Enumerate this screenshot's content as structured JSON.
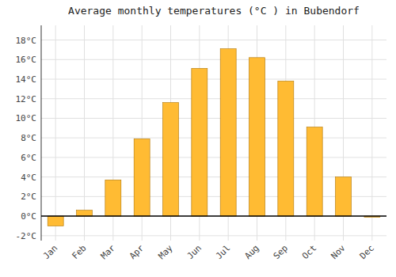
{
  "chart_data": {
    "type": "bar",
    "title": "Average monthly temperatures (°C ) in Bubendorf",
    "categories": [
      "Jan",
      "Feb",
      "Mar",
      "Apr",
      "May",
      "Jun",
      "Jul",
      "Aug",
      "Sep",
      "Oct",
      "Nov",
      "Dec"
    ],
    "values": [
      -1.0,
      0.6,
      3.7,
      7.9,
      11.6,
      15.1,
      17.1,
      16.2,
      13.8,
      9.1,
      4.0,
      -0.1
    ],
    "color": "#FFBB33",
    "ylim": [
      -2.5,
      19.5
    ],
    "yticks": [
      {
        "value": -2,
        "label": "-2°C"
      },
      {
        "value": 0,
        "label": "0°C"
      },
      {
        "value": 2,
        "label": "2°C"
      },
      {
        "value": 4,
        "label": "4°C"
      },
      {
        "value": 6,
        "label": "6°C"
      },
      {
        "value": 8,
        "label": "8°C"
      },
      {
        "value": 10,
        "label": "10°C"
      },
      {
        "value": 12,
        "label": "12°C"
      },
      {
        "value": 14,
        "label": "14°C"
      },
      {
        "value": 16,
        "label": "16°C"
      },
      {
        "value": 18,
        "label": "18°C"
      }
    ],
    "grid": true
  }
}
